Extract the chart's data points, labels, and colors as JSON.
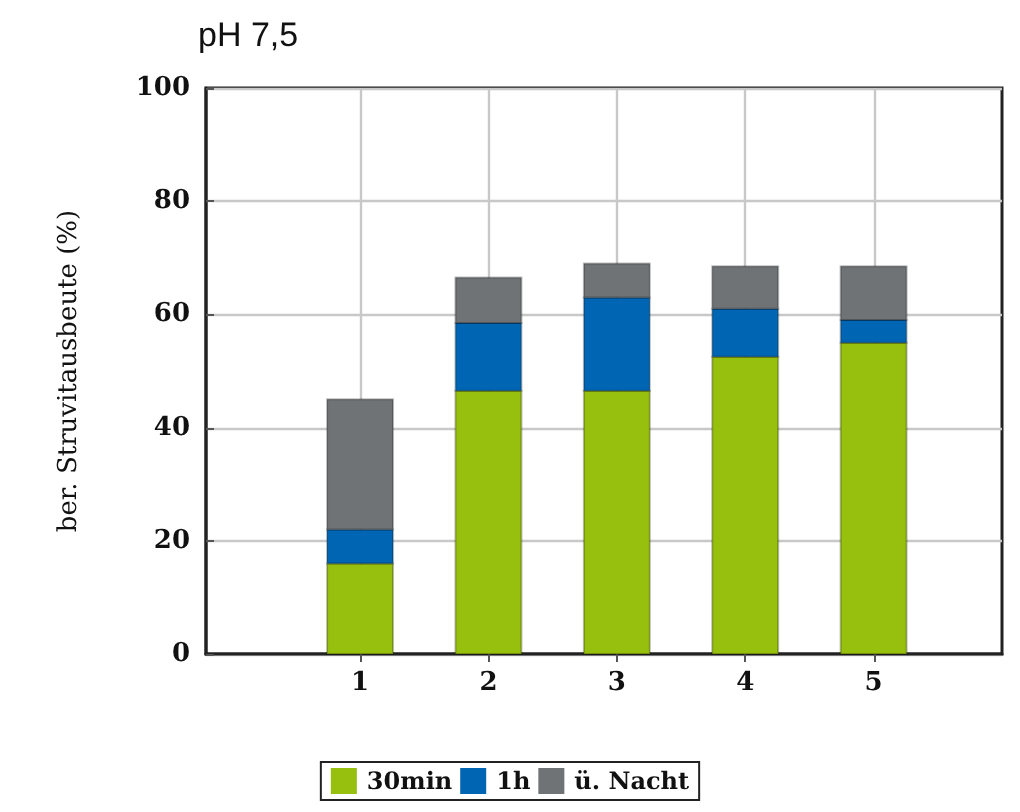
{
  "chart_data": {
    "type": "bar",
    "title": "pH 7,5",
    "ylabel": "ber. Struvitausbeute (%)",
    "x": [
      1,
      2,
      3,
      4,
      5
    ],
    "xlim": [
      -0.2,
      6
    ],
    "xticks": [
      1,
      2,
      3,
      4,
      5
    ],
    "ylim": [
      0,
      100
    ],
    "yticks": [
      0,
      20,
      40,
      60,
      80,
      100
    ],
    "stacked": true,
    "grid": true,
    "legend": "bottom",
    "series": [
      {
        "name": "30min",
        "color": "#97bf0d",
        "values": [
          16,
          46.5,
          46.5,
          52.5,
          55
        ]
      },
      {
        "name": "1h",
        "color": "#0066b3",
        "values": [
          6,
          12,
          16.5,
          8.5,
          4
        ]
      },
      {
        "name": "ü. Nacht",
        "color": "#6f7375",
        "values": [
          23,
          8,
          6,
          7.5,
          9.5
        ]
      }
    ]
  }
}
